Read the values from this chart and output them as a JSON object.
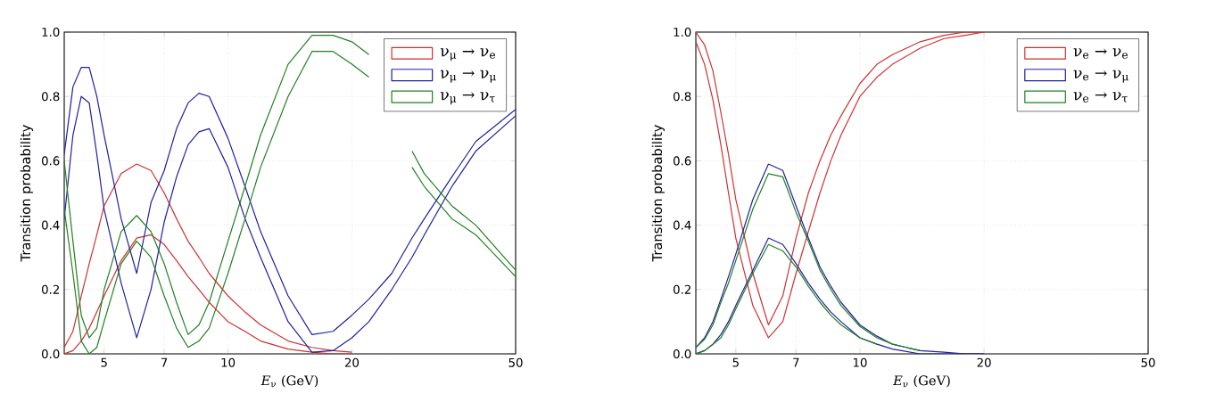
{
  "chart_data": [
    {
      "type": "line",
      "xlabel": "*E*$_{ν}$ (GeV)",
      "ylabel": "Transition probability",
      "log": "x",
      "grid": true,
      "legend": "top right",
      "xlim": [
        4,
        50
      ],
      "xticks": [
        5,
        7,
        10,
        20,
        50
      ],
      "ylim": [
        0,
        1
      ],
      "yticks": [
        {
          "value": 0,
          "label": "0.0"
        },
        {
          "value": 0.2,
          "label": "0.2"
        },
        {
          "value": 0.4,
          "label": "0.4"
        },
        {
          "value": 0.6,
          "label": "0.6"
        },
        {
          "value": 0.8,
          "label": "0.8"
        },
        {
          "value": 1,
          "label": "1.0"
        }
      ],
      "x": [
        4,
        4.2,
        4.4,
        4.6,
        4.8,
        5,
        5.5,
        6,
        6.5,
        7,
        7.5,
        8,
        8.5,
        9,
        10,
        11,
        12,
        14,
        16,
        18,
        20,
        22,
        25,
        28,
        30,
        35,
        40,
        50
      ],
      "series": [
        {
          "name": "ν$_{μ}$ → ν$_{e}$",
          "color": "#d03030",
          "values": [
            0.02,
            0.07,
            0.18,
            0.28,
            0.37,
            0.46,
            0.56,
            0.59,
            0.57,
            0.5,
            0.42,
            0.35,
            0.3,
            0.25,
            0.18,
            0.13,
            0.09,
            0.04,
            0.02,
            0.01,
            0.005,
            null,
            null,
            null,
            null,
            null,
            null,
            null
          ]
        },
        {
          "color": "#d03030",
          "values": [
            0,
            0.01,
            0.04,
            0.08,
            0.13,
            0.18,
            0.29,
            0.36,
            0.37,
            0.34,
            0.29,
            0.24,
            0.2,
            0.16,
            0.1,
            0.07,
            0.04,
            0.015,
            0.005,
            0,
            0,
            null,
            null,
            null,
            null,
            null,
            null,
            null
          ]
        },
        {
          "name": "ν$_{μ}$ → ν$_{μ}$",
          "color": "#2020a0",
          "values": [
            0.62,
            0.83,
            0.89,
            0.89,
            0.8,
            0.68,
            0.42,
            0.25,
            0.47,
            0.57,
            0.7,
            0.78,
            0.81,
            0.8,
            0.67,
            0.52,
            0.38,
            0.18,
            0.06,
            0.07,
            0.12,
            0.17,
            0.25,
            0.36,
            0.42,
            0.55,
            0.66,
            0.76
          ]
        },
        {
          "color": "#2020a0",
          "values": [
            0.42,
            0.68,
            0.8,
            0.78,
            0.62,
            0.45,
            0.22,
            0.05,
            0.2,
            0.41,
            0.55,
            0.65,
            0.69,
            0.7,
            0.58,
            0.42,
            0.3,
            0.1,
            0.005,
            0.01,
            0.05,
            0.1,
            0.2,
            0.3,
            0.37,
            0.52,
            0.63,
            0.74
          ]
        },
        {
          "name": "ν$_{μ}$ → ν$_{τ}$",
          "color": "#208020",
          "values": [
            0.6,
            0.35,
            0.12,
            0.05,
            0.08,
            0.2,
            0.38,
            0.43,
            0.38,
            0.28,
            0.16,
            0.06,
            0.09,
            0.16,
            0.35,
            0.52,
            0.68,
            0.9,
            0.99,
            0.99,
            0.97,
            0.93,
            null,
            0.63,
            0.56,
            0.46,
            0.4,
            0.26
          ]
        },
        {
          "color": "#208020",
          "values": [
            0.45,
            0.25,
            0.04,
            0,
            0.02,
            0.1,
            0.28,
            0.35,
            0.3,
            0.18,
            0.08,
            0.02,
            0.04,
            0.08,
            0.25,
            0.42,
            0.58,
            0.8,
            0.94,
            0.94,
            0.9,
            0.86,
            null,
            0.58,
            0.52,
            0.42,
            0.37,
            0.24
          ]
        }
      ]
    },
    {
      "type": "line",
      "xlabel": "*E*$_{ν}$ (GeV)",
      "ylabel": "Transition probability",
      "log": "x",
      "grid": true,
      "legend": "top right",
      "xlim": [
        4,
        50
      ],
      "xticks": [
        5,
        7,
        10,
        20,
        50
      ],
      "ylim": [
        0,
        1
      ],
      "yticks": [
        {
          "value": 0,
          "label": "0.0"
        },
        {
          "value": 0.2,
          "label": "0.2"
        },
        {
          "value": 0.4,
          "label": "0.4"
        },
        {
          "value": 0.6,
          "label": "0.6"
        },
        {
          "value": 0.8,
          "label": "0.8"
        },
        {
          "value": 1,
          "label": "1.0"
        }
      ],
      "x": [
        4,
        4.2,
        4.4,
        4.6,
        4.8,
        5,
        5.5,
        6,
        6.5,
        7,
        7.5,
        8,
        8.5,
        9,
        10,
        11,
        12,
        14,
        16,
        18,
        20
      ],
      "series": [
        {
          "name": "ν$_{e}$ → ν$_{e}$",
          "color": "#d03030",
          "values": [
            1,
            0.96,
            0.88,
            0.75,
            0.62,
            0.48,
            0.25,
            0.09,
            0.18,
            0.36,
            0.5,
            0.6,
            0.68,
            0.74,
            0.84,
            0.9,
            0.93,
            0.97,
            0.99,
            1,
            1
          ]
        },
        {
          "color": "#d03030",
          "values": [
            0.97,
            0.9,
            0.79,
            0.65,
            0.5,
            0.36,
            0.15,
            0.05,
            0.1,
            0.25,
            0.38,
            0.5,
            0.6,
            0.68,
            0.8,
            0.86,
            0.9,
            0.95,
            0.98,
            0.99,
            1
          ]
        },
        {
          "name": "ν$_{e}$ → ν$_{μ}$",
          "color": "#2020a0",
          "values": [
            0.02,
            0.05,
            0.1,
            0.17,
            0.24,
            0.31,
            0.48,
            0.59,
            0.57,
            0.46,
            0.36,
            0.27,
            0.21,
            0.16,
            0.09,
            0.055,
            0.03,
            0.01,
            0.005,
            0,
            0
          ]
        },
        {
          "color": "#2020a0",
          "values": [
            0,
            0.01,
            0.03,
            0.06,
            0.1,
            0.15,
            0.26,
            0.36,
            0.34,
            0.28,
            0.22,
            0.17,
            0.13,
            0.1,
            0.05,
            0.03,
            0.015,
            0,
            0,
            0,
            0
          ]
        },
        {
          "name": "ν$_{e}$ → ν$_{τ}$",
          "color": "#208020",
          "values": [
            0.02,
            0.045,
            0.09,
            0.16,
            0.22,
            0.29,
            0.45,
            0.56,
            0.55,
            0.44,
            0.35,
            0.26,
            0.2,
            0.15,
            0.085,
            0.05,
            0.03,
            0.01,
            null,
            null,
            null
          ]
        },
        {
          "color": "#208020",
          "values": [
            0,
            0.01,
            0.03,
            0.05,
            0.09,
            0.14,
            0.25,
            0.34,
            0.32,
            0.27,
            0.21,
            0.16,
            0.12,
            0.09,
            0.05,
            0.03,
            null,
            null,
            null,
            null,
            null
          ]
        }
      ]
    }
  ]
}
